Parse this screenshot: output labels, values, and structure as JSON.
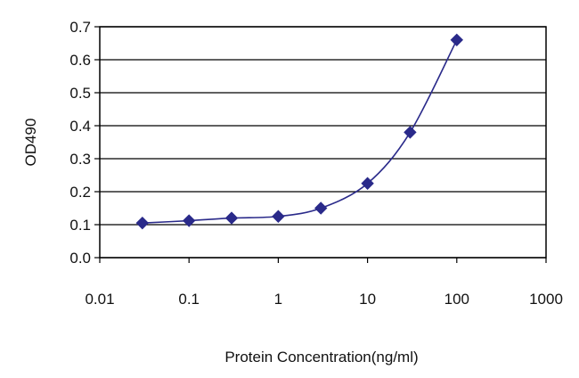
{
  "chart_data": {
    "type": "line",
    "xscale": "log",
    "xlabel": "Protein Concentration(ng/ml)",
    "ylabel": "OD490",
    "xlim": [
      0.01,
      1000
    ],
    "ylim": [
      0.0,
      0.7
    ],
    "grid": {
      "horizontal": true,
      "vertical": false
    },
    "x_tick_labels": [
      "0.01",
      "0.1",
      "1",
      "10",
      "100",
      "1000"
    ],
    "x_tick_values": [
      0.01,
      0.1,
      1,
      10,
      100,
      1000
    ],
    "y_tick_labels": [
      "0.0",
      "0.1",
      "0.2",
      "0.3",
      "0.4",
      "0.5",
      "0.6",
      "0.7"
    ],
    "y_tick_values": [
      0.0,
      0.1,
      0.2,
      0.3,
      0.4,
      0.5,
      0.6,
      0.7
    ],
    "series": [
      {
        "x": [
          0.03,
          0.1,
          0.3,
          1,
          3,
          10,
          30,
          100
        ],
        "y": [
          0.105,
          0.112,
          0.12,
          0.125,
          0.15,
          0.225,
          0.38,
          0.66
        ],
        "color": "#2a2a8a",
        "marker": "diamond"
      }
    ],
    "colors": {
      "plot_border": "#000000",
      "grid": "#000000",
      "line": "#2a2a8a"
    }
  }
}
